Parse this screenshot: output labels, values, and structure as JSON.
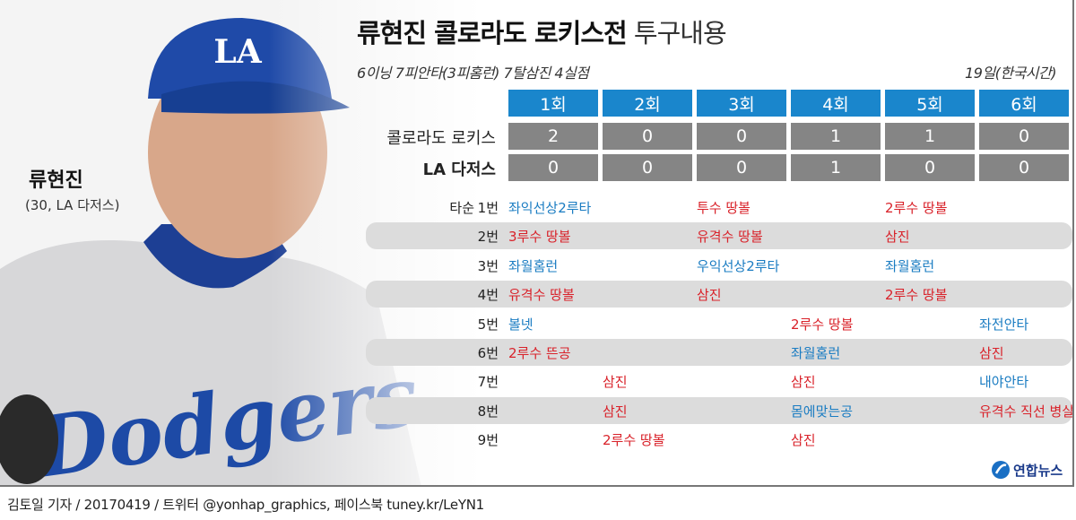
{
  "title": {
    "bold": "류현진 콜로라도 로키스전",
    "light": "투구내용"
  },
  "summary": "6이닝 7피안타(3피홈런) 7탈삼진 4실점",
  "date_note": "19일(한국시간)",
  "player": {
    "name": "류현진",
    "detail": "(30, LA 다저스)",
    "jersey_text": "Dodgers",
    "cap_logo": "LA"
  },
  "innings": [
    "1회",
    "2회",
    "3회",
    "4회",
    "5회",
    "6회"
  ],
  "scores": [
    {
      "team": "콜로라도 로키스",
      "runs": [
        "2",
        "0",
        "0",
        "1",
        "1",
        "0"
      ]
    },
    {
      "team": "LA 다저스",
      "runs": [
        "0",
        "0",
        "0",
        "1",
        "0",
        "0"
      ]
    }
  ],
  "batting_order_prefix": "타순",
  "batters": [
    {
      "label": "1번",
      "results": [
        {
          "inning": 1,
          "text": "좌익선상2루타",
          "type": "hit"
        },
        {
          "inning": 3,
          "text": "투수 땅볼",
          "type": "out"
        },
        {
          "inning": 5,
          "text": "2루수 땅볼",
          "type": "out"
        }
      ]
    },
    {
      "label": "2번",
      "results": [
        {
          "inning": 1,
          "text": "3루수 땅볼",
          "type": "out"
        },
        {
          "inning": 3,
          "text": "유격수 땅볼",
          "type": "out"
        },
        {
          "inning": 5,
          "text": "삼진",
          "type": "out"
        }
      ]
    },
    {
      "label": "3번",
      "results": [
        {
          "inning": 1,
          "text": "좌월홈런",
          "type": "hit"
        },
        {
          "inning": 3,
          "text": "우익선상2루타",
          "type": "hit"
        },
        {
          "inning": 5,
          "text": "좌월홈런",
          "type": "hit"
        }
      ]
    },
    {
      "label": "4번",
      "results": [
        {
          "inning": 1,
          "text": "유격수 땅볼",
          "type": "out"
        },
        {
          "inning": 3,
          "text": "삼진",
          "type": "out"
        },
        {
          "inning": 5,
          "text": "2루수 땅볼",
          "type": "out"
        }
      ]
    },
    {
      "label": "5번",
      "results": [
        {
          "inning": 1,
          "text": "볼넷",
          "type": "hit"
        },
        {
          "inning": 4,
          "text": "2루수 땅볼",
          "type": "out"
        },
        {
          "inning": 6,
          "text": "좌전안타",
          "type": "hit"
        }
      ]
    },
    {
      "label": "6번",
      "results": [
        {
          "inning": 1,
          "text": "2루수 뜬공",
          "type": "out"
        },
        {
          "inning": 4,
          "text": "좌월홈런",
          "type": "hit"
        },
        {
          "inning": 6,
          "text": "삼진",
          "type": "out"
        }
      ]
    },
    {
      "label": "7번",
      "results": [
        {
          "inning": 2,
          "text": "삼진",
          "type": "out"
        },
        {
          "inning": 4,
          "text": "삼진",
          "type": "out"
        },
        {
          "inning": 6,
          "text": "내야안타",
          "type": "hit"
        }
      ]
    },
    {
      "label": "8번",
      "results": [
        {
          "inning": 2,
          "text": "삼진",
          "type": "out"
        },
        {
          "inning": 4,
          "text": "몸에맞는공",
          "type": "hit"
        },
        {
          "inning": 6,
          "text": "유격수 직선 병살",
          "type": "out"
        }
      ]
    },
    {
      "label": "9번",
      "results": [
        {
          "inning": 2,
          "text": "2루수 땅볼",
          "type": "out"
        },
        {
          "inning": 4,
          "text": "삼진",
          "type": "out"
        }
      ]
    }
  ],
  "logo": "연합뉴스",
  "footer": "김토일 기자 / 20170419 / 트위터 @yonhap_graphics, 페이스북 tuney.kr/LeYN1",
  "colors": {
    "header": "#1a86cc",
    "score": "#858585",
    "hit": "#1a7cc2",
    "out": "#d9222a"
  }
}
